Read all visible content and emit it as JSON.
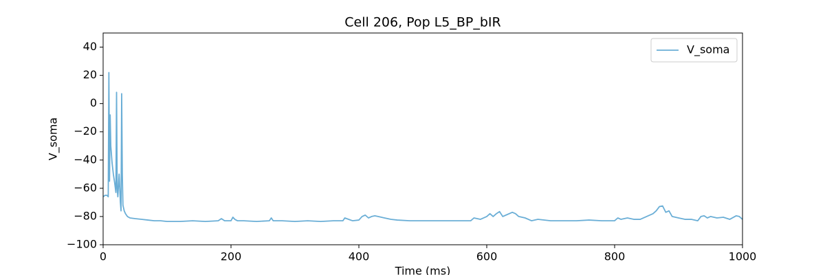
{
  "chart_data": {
    "type": "line",
    "title": "Cell 206, Pop L5_BP_bIR",
    "x_label": "Time (ms)",
    "y_label": "V_soma",
    "x": [
      0,
      3,
      6,
      8,
      9,
      10,
      11,
      12,
      14,
      16,
      18,
      20,
      21,
      22,
      23,
      25,
      27,
      28,
      29,
      30,
      31,
      33,
      35,
      38,
      42,
      50,
      60,
      70,
      80,
      90,
      100,
      120,
      140,
      160,
      180,
      185,
      190,
      200,
      203,
      206,
      210,
      220,
      240,
      260,
      263,
      266,
      280,
      300,
      320,
      340,
      360,
      375,
      378,
      390,
      400,
      405,
      410,
      415,
      420,
      425,
      430,
      440,
      450,
      460,
      480,
      500,
      520,
      540,
      560,
      575,
      580,
      590,
      600,
      605,
      610,
      615,
      620,
      625,
      630,
      640,
      645,
      650,
      660,
      670,
      680,
      700,
      720,
      740,
      760,
      780,
      800,
      805,
      810,
      820,
      830,
      840,
      850,
      860,
      865,
      870,
      875,
      880,
      885,
      890,
      900,
      910,
      920,
      930,
      935,
      940,
      945,
      950,
      960,
      970,
      980,
      990,
      995,
      1000
    ],
    "series": [
      {
        "name": "V_soma",
        "color": "#6aaed6",
        "values": [
          -66,
          -65,
          -65,
          -66,
          22,
          -55,
          -8,
          -30,
          -42,
          -50,
          -56,
          -63,
          8,
          -60,
          -66,
          -50,
          -70,
          -76,
          7,
          -50,
          -72,
          -76,
          -78,
          -80,
          -81,
          -81.5,
          -82,
          -82.5,
          -83,
          -83,
          -83.5,
          -83.5,
          -83,
          -83.5,
          -83,
          -81.5,
          -83,
          -83,
          -80.5,
          -82,
          -83,
          -83,
          -83.5,
          -83,
          -81,
          -83,
          -83,
          -83.5,
          -83,
          -83.5,
          -83,
          -83,
          -81,
          -83,
          -82.5,
          -80,
          -79,
          -81,
          -80,
          -79.5,
          -80,
          -81,
          -82,
          -82.5,
          -83,
          -83,
          -83,
          -83,
          -83,
          -83,
          -81,
          -82,
          -80,
          -78,
          -80,
          -78,
          -76.5,
          -80,
          -79,
          -77,
          -78,
          -80,
          -81,
          -83,
          -82,
          -83,
          -83,
          -83,
          -82.5,
          -83,
          -83,
          -81,
          -82,
          -81,
          -82,
          -82,
          -80,
          -78,
          -76,
          -73,
          -72.5,
          -77,
          -76,
          -80,
          -81,
          -82,
          -82,
          -83,
          -80,
          -79.5,
          -81,
          -80,
          -81,
          -80.5,
          -82,
          -79.5,
          -80,
          -82
        ]
      }
    ],
    "xlim": [
      0,
      1000
    ],
    "xticks": [
      0,
      200,
      400,
      600,
      800,
      1000
    ],
    "ylim": [
      -100,
      50
    ],
    "yticks": [
      {
        "value": -100,
        "label": "−100"
      },
      {
        "value": -80,
        "label": "−80"
      },
      {
        "value": -60,
        "label": "−60"
      },
      {
        "value": -40,
        "label": "−40"
      },
      {
        "value": -20,
        "label": "−20"
      },
      0,
      20,
      40
    ],
    "legend": "upper right",
    "grid": false
  }
}
